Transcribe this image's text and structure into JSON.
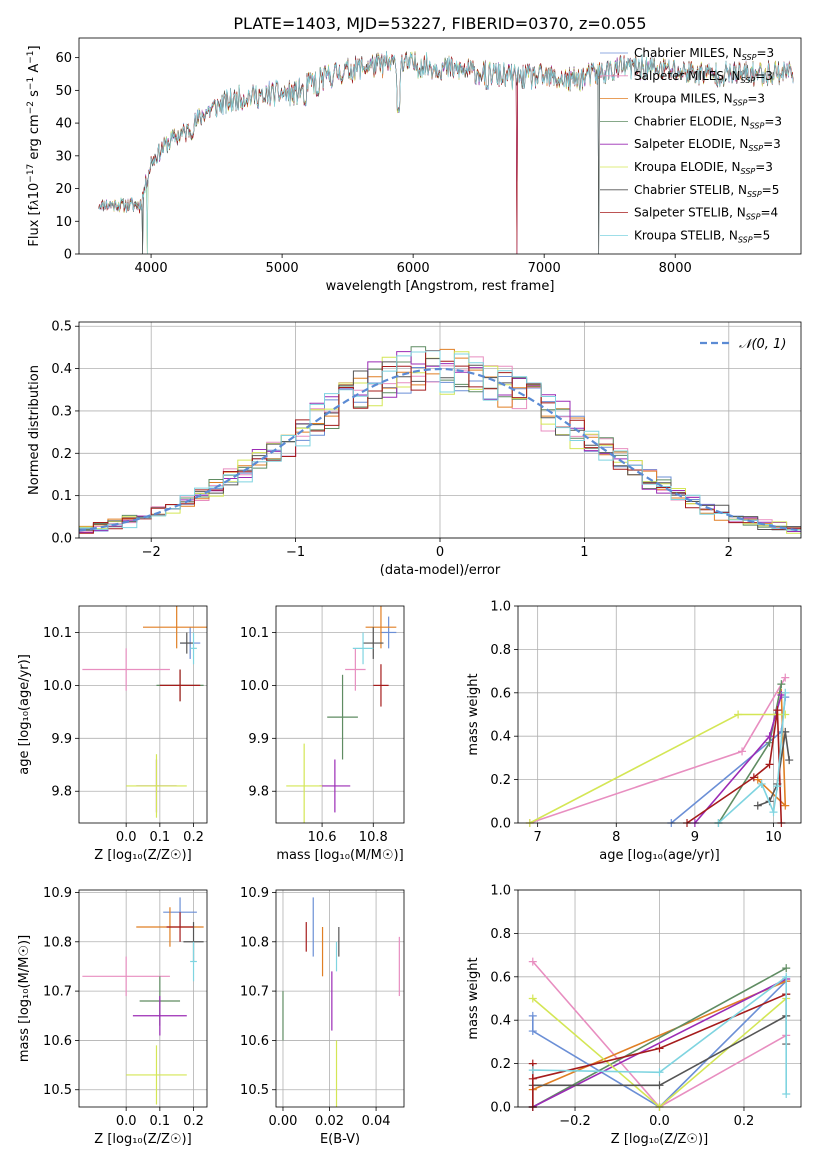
{
  "figure_title": "PLATE=1403, MJD=53227, FIBERID=0370, z=0.055",
  "models": [
    {
      "name": "Chabrier MILES, N",
      "sub": "SSP",
      "n": "=3",
      "color": "#6b8fd6"
    },
    {
      "name": "Salpeter MILES, N",
      "sub": "SSP",
      "n": "=3",
      "color": "#e88ec0"
    },
    {
      "name": "Kroupa MILES, N",
      "sub": "SSP",
      "n": "=3",
      "color": "#e07f24"
    },
    {
      "name": "Chabrier ELODIE, N",
      "sub": "SSP",
      "n": "=3",
      "color": "#5f8c62"
    },
    {
      "name": "Salpeter ELODIE, N",
      "sub": "SSP",
      "n": "=3",
      "color": "#9b2bb5"
    },
    {
      "name": "Kroupa ELODIE, N",
      "sub": "SSP",
      "n": "=3",
      "color": "#d4e655"
    },
    {
      "name": "Chabrier STELIB, N",
      "sub": "SSP",
      "n": "=5",
      "color": "#555555"
    },
    {
      "name": "Salpeter STELIB, N",
      "sub": "SSP",
      "n": "=4",
      "color": "#a51c1c"
    },
    {
      "name": "Kroupa STELIB, N",
      "sub": "SSP",
      "n": "=5",
      "color": "#7fd4e0"
    }
  ],
  "chart_data": [
    {
      "id": "spectrum",
      "type": "line",
      "xlabel": "wavelength [Angstrom, rest frame]",
      "ylabel_parts": [
        "Flux [f",
        "λ",
        "10",
        "−17",
        " erg cm",
        "−2",
        " s",
        "−1",
        " A",
        "−1",
        "]"
      ],
      "xlim": [
        3450,
        8960
      ],
      "ylim": [
        0,
        66
      ],
      "xticks": [
        4000,
        5000,
        6000,
        7000,
        8000
      ],
      "yticks": [
        0,
        10,
        20,
        30,
        40,
        50,
        60
      ],
      "x_range": [
        3600,
        8900
      ],
      "continuum_knots": [
        [
          3600,
          15
        ],
        [
          3800,
          15
        ],
        [
          3920,
          15
        ],
        [
          4000,
          28
        ],
        [
          4100,
          33
        ],
        [
          4200,
          36
        ],
        [
          4300,
          38
        ],
        [
          4400,
          43
        ],
        [
          4500,
          45
        ],
        [
          4700,
          48
        ],
        [
          4900,
          49
        ],
        [
          5100,
          49
        ],
        [
          5200,
          52
        ],
        [
          5400,
          55
        ],
        [
          5600,
          57
        ],
        [
          5800,
          58
        ],
        [
          6000,
          58
        ],
        [
          6200,
          57
        ],
        [
          6400,
          56
        ],
        [
          6600,
          55
        ],
        [
          6800,
          54
        ],
        [
          7000,
          54
        ],
        [
          7200,
          53
        ],
        [
          7400,
          55
        ],
        [
          7600,
          57
        ],
        [
          7800,
          57
        ],
        [
          8000,
          56
        ],
        [
          8300,
          55
        ],
        [
          8600,
          55
        ],
        [
          8900,
          56
        ]
      ],
      "drop_features": [
        [
          3933,
          0
        ],
        [
          3969,
          0
        ],
        [
          6790,
          0
        ],
        [
          7415,
          0
        ]
      ],
      "absorption_features": [
        [
          4305,
          40
        ],
        [
          4861,
          47
        ],
        [
          5175,
          46
        ],
        [
          5270,
          49
        ],
        [
          5890,
          44
        ],
        [
          6563,
          51
        ]
      ]
    },
    {
      "id": "residuals",
      "type": "histogram",
      "xlabel": "(data-model)/error",
      "ylabel": "Normed distribution",
      "xlim": [
        -2.5,
        2.5
      ],
      "ylim": [
        0,
        0.51
      ],
      "xticks": [
        -2,
        -1,
        0,
        1,
        2
      ],
      "yticks": [
        0.0,
        0.1,
        0.2,
        0.3,
        0.4,
        0.5
      ],
      "bins": [
        -2.5,
        2.5,
        50
      ],
      "reference_label": "𝒩(0, 1)",
      "reference_color": "#5b8bd4"
    },
    {
      "id": "age_vs_Z",
      "type": "errorbar",
      "xlabel": "Z [log₁₀(Z/Z☉)]",
      "ylabel": "age  [log₁₀(age/yr)]",
      "xlim": [
        -0.14,
        0.24
      ],
      "ylim": [
        9.74,
        10.15
      ],
      "xticks": [
        0.0,
        0.1,
        0.2
      ],
      "yticks": [
        9.8,
        9.9,
        10.0,
        10.1
      ],
      "points": [
        {
          "x": 0.19,
          "xerr": 0.03,
          "y": 10.08,
          "yerr": 0.03
        },
        {
          "x": 0.0,
          "xerr": 0.13,
          "y": 10.03,
          "yerr": 0.04
        },
        {
          "x": 0.15,
          "xerr": 0.1,
          "y": 10.11,
          "yerr": 0.04
        },
        {
          "x": 0.16,
          "xerr": 0.07,
          "y": 10.0,
          "yerr": 0.03
        },
        {
          "x": 0.09,
          "xerr": 0.06,
          "y": 9.81,
          "yerr": 0.05
        },
        {
          "x": 0.09,
          "xerr": 0.09,
          "y": 9.81,
          "yerr": 0.06
        },
        {
          "x": 0.18,
          "xerr": 0.02,
          "y": 10.08,
          "yerr": 0.02
        },
        {
          "x": 0.16,
          "xerr": 0.06,
          "y": 10.0,
          "yerr": 0.03
        },
        {
          "x": 0.2,
          "xerr": 0.01,
          "y": 10.07,
          "yerr": 0.03
        }
      ]
    },
    {
      "id": "age_vs_mass",
      "type": "errorbar",
      "xlabel": "mass [log₁₀(M/M☉)]",
      "ylabel": "",
      "xlim": [
        10.42,
        10.92
      ],
      "ylim": [
        9.74,
        10.15
      ],
      "xticks": [
        10.6,
        10.8
      ],
      "yticks": [
        9.8,
        9.9,
        10.0,
        10.1
      ],
      "points": [
        {
          "x": 10.86,
          "xerr": 0.03,
          "y": 10.1,
          "yerr": 0.03
        },
        {
          "x": 10.73,
          "xerr": 0.04,
          "y": 10.03,
          "yerr": 0.04
        },
        {
          "x": 10.83,
          "xerr": 0.06,
          "y": 10.11,
          "yerr": 0.04
        },
        {
          "x": 10.68,
          "xerr": 0.06,
          "y": 9.94,
          "yerr": 0.08
        },
        {
          "x": 10.65,
          "xerr": 0.06,
          "y": 9.81,
          "yerr": 0.05
        },
        {
          "x": 10.53,
          "xerr": 0.07,
          "y": 9.81,
          "yerr": 0.08
        },
        {
          "x": 10.8,
          "xerr": 0.04,
          "y": 10.08,
          "yerr": 0.03
        },
        {
          "x": 10.83,
          "xerr": 0.03,
          "y": 10.0,
          "yerr": 0.04
        },
        {
          "x": 10.76,
          "xerr": 0.04,
          "y": 10.07,
          "yerr": 0.03
        }
      ]
    },
    {
      "id": "massweight_vs_age",
      "type": "line",
      "xlabel": "age  [log₁₀(age/yr)]",
      "ylabel": "mass weight",
      "xlim": [
        6.75,
        10.35
      ],
      "ylim": [
        0,
        1
      ],
      "xticks": [
        7,
        8,
        9,
        10
      ],
      "yticks": [
        0.0,
        0.2,
        0.4,
        0.6,
        0.8,
        1.0
      ],
      "series": [
        {
          "x": [
            8.7,
            10.1,
            10.15
          ],
          "y": [
            0.0,
            0.42,
            0.58
          ]
        },
        {
          "x": [
            6.9,
            9.6,
            10.15
          ],
          "y": [
            0.0,
            0.33,
            0.67
          ]
        },
        {
          "x": [
            9.8,
            10.15,
            10.1
          ],
          "y": [
            0.2,
            0.08,
            0.6
          ]
        },
        {
          "x": [
            9.3,
            9.95,
            10.1
          ],
          "y": [
            0.0,
            0.37,
            0.64
          ]
        },
        {
          "x": [
            9.0,
            9.95,
            10.1
          ],
          "y": [
            0.0,
            0.4,
            0.59
          ]
        },
        {
          "x": [
            6.9,
            9.55,
            10.15
          ],
          "y": [
            0.0,
            0.5,
            0.5
          ]
        },
        {
          "x": [
            9.8,
            9.95,
            10.05,
            10.15,
            10.2
          ],
          "y": [
            0.08,
            0.1,
            0.18,
            0.42,
            0.29
          ]
        },
        {
          "x": [
            8.9,
            9.75,
            9.95,
            10.05,
            10.1
          ],
          "y": [
            0.0,
            0.21,
            0.27,
            0.52,
            0.0
          ]
        },
        {
          "x": [
            9.3,
            9.85,
            10.0,
            10.05,
            10.15
          ],
          "y": [
            0.0,
            0.18,
            0.05,
            0.17,
            0.6
          ]
        }
      ]
    },
    {
      "id": "mass_vs_Z",
      "type": "errorbar",
      "xlabel": "Z [log₁₀(Z/Z☉)]",
      "ylabel": "mass [log₁₀(M/M☉)]",
      "xlim": [
        -0.14,
        0.24
      ],
      "ylim": [
        10.465,
        10.905
      ],
      "xticks": [
        0.0,
        0.1,
        0.2
      ],
      "yticks": [
        10.5,
        10.6,
        10.7,
        10.8,
        10.9
      ],
      "points": [
        {
          "x": 0.16,
          "xerr": 0.05,
          "y": 10.86,
          "yerr": 0.03
        },
        {
          "x": 0.0,
          "xerr": 0.13,
          "y": 10.73,
          "yerr": 0.04
        },
        {
          "x": 0.13,
          "xerr": 0.1,
          "y": 10.83,
          "yerr": 0.04
        },
        {
          "x": 0.1,
          "xerr": 0.06,
          "y": 10.68,
          "yerr": 0.05
        },
        {
          "x": 0.1,
          "xerr": 0.08,
          "y": 10.65,
          "yerr": 0.04
        },
        {
          "x": 0.09,
          "xerr": 0.09,
          "y": 10.53,
          "yerr": 0.06
        },
        {
          "x": 0.2,
          "xerr": 0.03,
          "y": 10.8,
          "yerr": 0.04
        },
        {
          "x": 0.16,
          "xerr": 0.04,
          "y": 10.83,
          "yerr": 0.03
        },
        {
          "x": 0.2,
          "xerr": 0.01,
          "y": 10.76,
          "yerr": 0.04
        }
      ]
    },
    {
      "id": "mass_vs_ebv",
      "type": "errorbar",
      "xlabel": "E(B-V)",
      "ylabel": "",
      "xlim": [
        -0.003,
        0.052
      ],
      "ylim": [
        10.465,
        10.905
      ],
      "xticks": [
        0.0,
        0.02,
        0.04
      ],
      "yticks": [
        10.5,
        10.6,
        10.7,
        10.8,
        10.9
      ],
      "points": [
        {
          "x": 0.013,
          "y": 10.83,
          "yerr": 0.06
        },
        {
          "x": 0.05,
          "y": 10.75,
          "yerr": 0.06
        },
        {
          "x": 0.017,
          "y": 10.78,
          "yerr": 0.05
        },
        {
          "x": 0.0,
          "y": 10.65,
          "yerr": 0.05
        },
        {
          "x": 0.021,
          "y": 10.68,
          "yerr": 0.06
        },
        {
          "x": 0.023,
          "y": 10.53,
          "yerr": 0.07
        },
        {
          "x": 0.024,
          "y": 10.8,
          "yerr": 0.03
        },
        {
          "x": 0.01,
          "y": 10.81,
          "yerr": 0.03
        },
        {
          "x": 0.023,
          "y": 10.77,
          "yerr": 0.03
        }
      ]
    },
    {
      "id": "massweight_vs_Z",
      "type": "line",
      "xlabel": "Z [log₁₀(Z/Z☉)]",
      "ylabel": "mass weight",
      "xlim": [
        -0.335,
        0.335
      ],
      "ylim": [
        0,
        1
      ],
      "xticks": [
        -0.2,
        0.0,
        0.2
      ],
      "yticks": [
        0.0,
        0.2,
        0.4,
        0.6,
        0.8,
        1.0
      ],
      "series": [
        {
          "x": [
            -0.3,
            -0.3,
            0.0,
            0.3
          ],
          "y": [
            0.42,
            0.35,
            0.0,
            0.58
          ]
        },
        {
          "x": [
            -0.3,
            0.0,
            0.3
          ],
          "y": [
            0.67,
            0.0,
            0.33
          ]
        },
        {
          "x": [
            -0.3,
            0.3
          ],
          "y": [
            0.08,
            0.58
          ]
        },
        {
          "x": [
            -0.3,
            0.3
          ],
          "y": [
            0.0,
            0.64
          ]
        },
        {
          "x": [
            -0.3,
            0.3
          ],
          "y": [
            0.0,
            0.59
          ]
        },
        {
          "x": [
            -0.3,
            0.0,
            0.3
          ],
          "y": [
            0.5,
            0.0,
            0.5
          ]
        },
        {
          "x": [
            -0.3,
            -0.3,
            0.0,
            0.3,
            0.3,
            0.3
          ],
          "y": [
            0.0,
            0.1,
            0.1,
            0.42,
            0.29,
            0.52
          ]
        },
        {
          "x": [
            -0.3,
            -0.3,
            -0.3,
            0.0,
            0.3
          ],
          "y": [
            0.0,
            0.2,
            0.13,
            0.27,
            0.52
          ]
        },
        {
          "x": [
            -0.3,
            0.0,
            0.3,
            0.3
          ],
          "y": [
            0.17,
            0.16,
            0.6,
            0.06
          ]
        }
      ]
    }
  ]
}
